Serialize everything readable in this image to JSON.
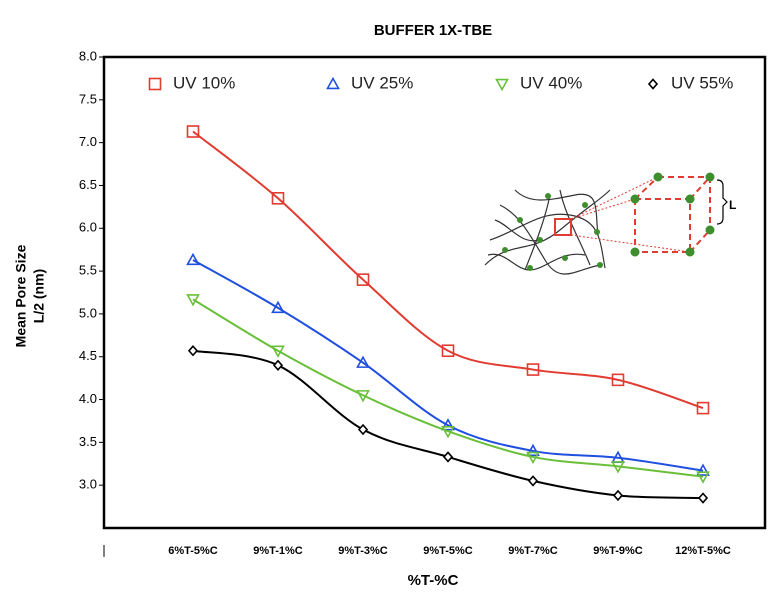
{
  "chart_data": {
    "type": "line",
    "title": "BUFFER 1X-TBE",
    "xlabel": "%T-%C",
    "ylabel": [
      "Mean Pore Size",
      "L/2 (nm)"
    ],
    "categories": [
      "6%T-5%C",
      "9%T-1%C",
      "9%T-3%C",
      "9%T-5%C",
      "9%T-7%C",
      "9%T-9%C",
      "12%T-5%C"
    ],
    "series": [
      {
        "name": "UV 10%",
        "color": "#e03c31",
        "marker": "square",
        "values": [
          7.13,
          6.35,
          5.4,
          4.57,
          4.35,
          4.23,
          3.9
        ]
      },
      {
        "name": "UV 25%",
        "color": "#1f4fe0",
        "marker": "triangle-up",
        "values": [
          5.63,
          5.07,
          4.43,
          3.7,
          3.4,
          3.32,
          3.17
        ]
      },
      {
        "name": "UV 40%",
        "color": "#6abf3a",
        "marker": "triangle-down",
        "values": [
          5.17,
          4.57,
          4.05,
          3.63,
          3.33,
          3.22,
          3.1
        ]
      },
      {
        "name": "UV 55%",
        "color": "#000000",
        "marker": "diamond",
        "values": [
          4.57,
          4.4,
          3.65,
          3.33,
          3.05,
          2.88,
          2.85
        ]
      }
    ],
    "ylim": [
      2.5,
      8.0
    ],
    "yticks": [
      {
        "value": 3,
        "label": "3.0"
      },
      3.5,
      {
        "value": 4,
        "label": "4.0"
      },
      4.5,
      {
        "value": 5,
        "label": "5.0"
      },
      5.5,
      {
        "value": 6,
        "label": "6.0"
      },
      6.5,
      {
        "value": 7,
        "label": "7.0"
      },
      7.5,
      {
        "value": 8,
        "label": "8.0"
      }
    ],
    "annotations": [
      "L"
    ]
  }
}
